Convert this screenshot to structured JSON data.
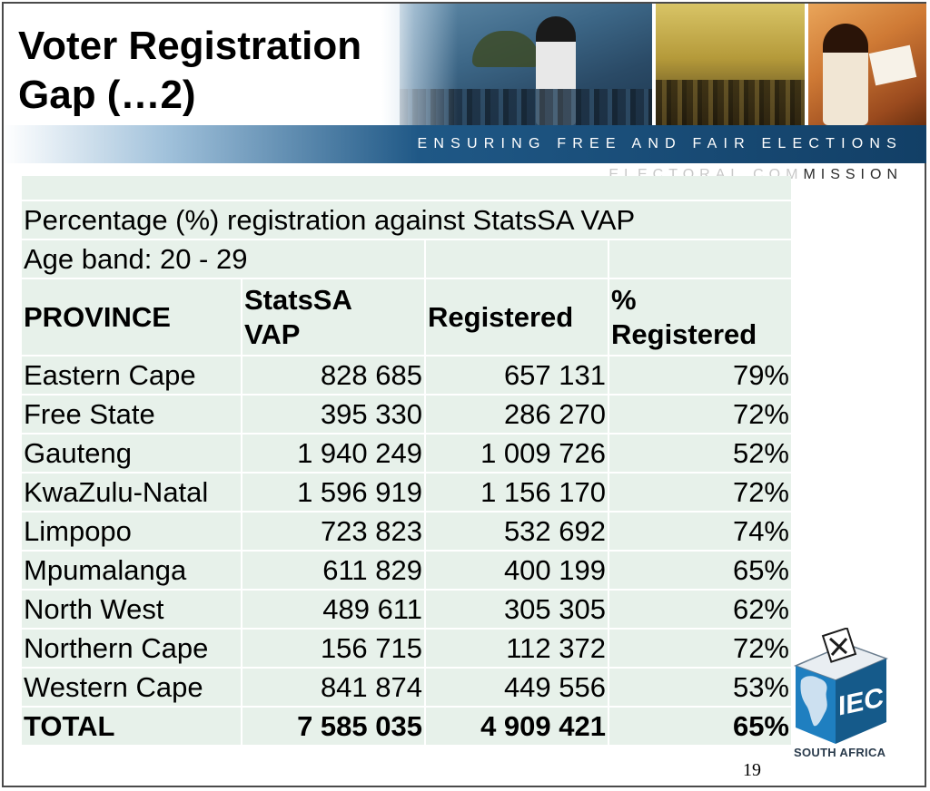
{
  "slide": {
    "title_line1": "Voter Registration",
    "title_line2": "Gap (…2)",
    "banner_text": "ENSURING FREE AND FAIR ELECTIONS",
    "commission_faded": "ELECTORAL COM",
    "commission_text": "MISSION",
    "page_number": "19"
  },
  "table": {
    "caption": "Percentage (%) registration against StatsSA VAP",
    "age_band": "Age band: 20 - 29",
    "headers": {
      "province": "PROVINCE",
      "vap_line1": "StatsSA",
      "vap_line2": "VAP",
      "registered": "Registered",
      "pct_line1": "%",
      "pct_line2": "Registered"
    },
    "rows": [
      {
        "province": "Eastern Cape",
        "vap": "828 685",
        "registered": "657 131",
        "pct": "79%"
      },
      {
        "province": "Free State",
        "vap": "395 330",
        "registered": "286 270",
        "pct": "72%"
      },
      {
        "province": "Gauteng",
        "vap": "1 940 249",
        "registered": "1 009 726",
        "pct": "52%"
      },
      {
        "province": "KwaZulu-Natal",
        "vap": "1 596 919",
        "registered": "1 156 170",
        "pct": "72%"
      },
      {
        "province": "Limpopo",
        "vap": "723 823",
        "registered": "532 692",
        "pct": "74%"
      },
      {
        "province": "Mpumalanga",
        "vap": "611 829",
        "registered": "400 199",
        "pct": "65%"
      },
      {
        "province": "North West",
        "vap": "489 611",
        "registered": "305 305",
        "pct": "62%"
      },
      {
        "province": "Northern Cape",
        "vap": "156 715",
        "registered": "112 372",
        "pct": "72%"
      },
      {
        "province": "Western Cape",
        "vap": "841 874",
        "registered": "449 556",
        "pct": "53%"
      }
    ],
    "total": {
      "label": "TOTAL",
      "vap": "7 585 035",
      "registered": "4 909 421",
      "pct": "65%"
    }
  },
  "logo": {
    "text": "IEC",
    "caption": "SOUTH AFRICA",
    "colors": {
      "box": "#1f7fc0",
      "box_side": "#155a8a",
      "box_top": "#e9eef2"
    }
  }
}
